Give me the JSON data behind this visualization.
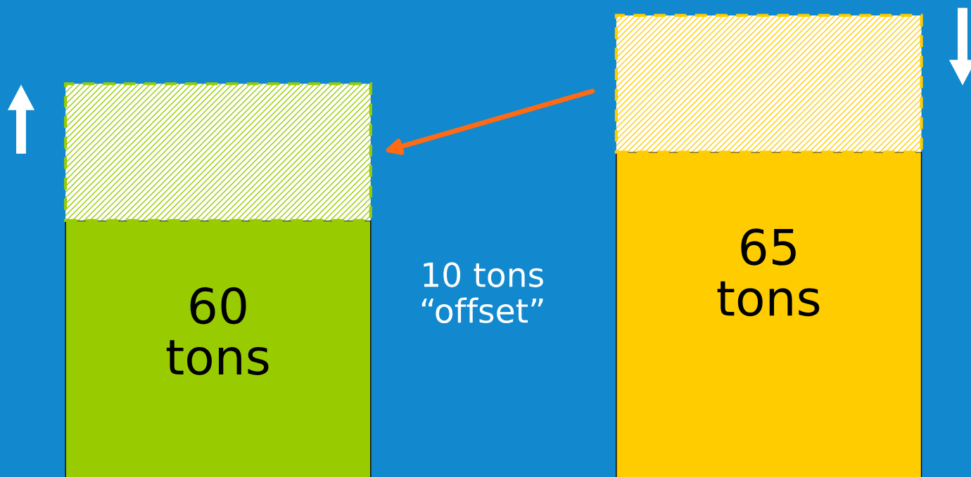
{
  "chart_data": {
    "type": "bar",
    "stacked": true,
    "categories": [
      null,
      null
    ],
    "series": [
      {
        "colors": [
          "#99cc00",
          "#ffcc00"
        ],
        "values": [
          60,
          65
        ],
        "value_labels": [
          "60\ntons",
          "65\ntons"
        ]
      },
      {
        "colors": [
          "#99cc00",
          "#ffcc00"
        ],
        "values": [
          10,
          10
        ]
      }
    ],
    "annotations": [
      "10 tons\n“offset”"
    ]
  }
}
